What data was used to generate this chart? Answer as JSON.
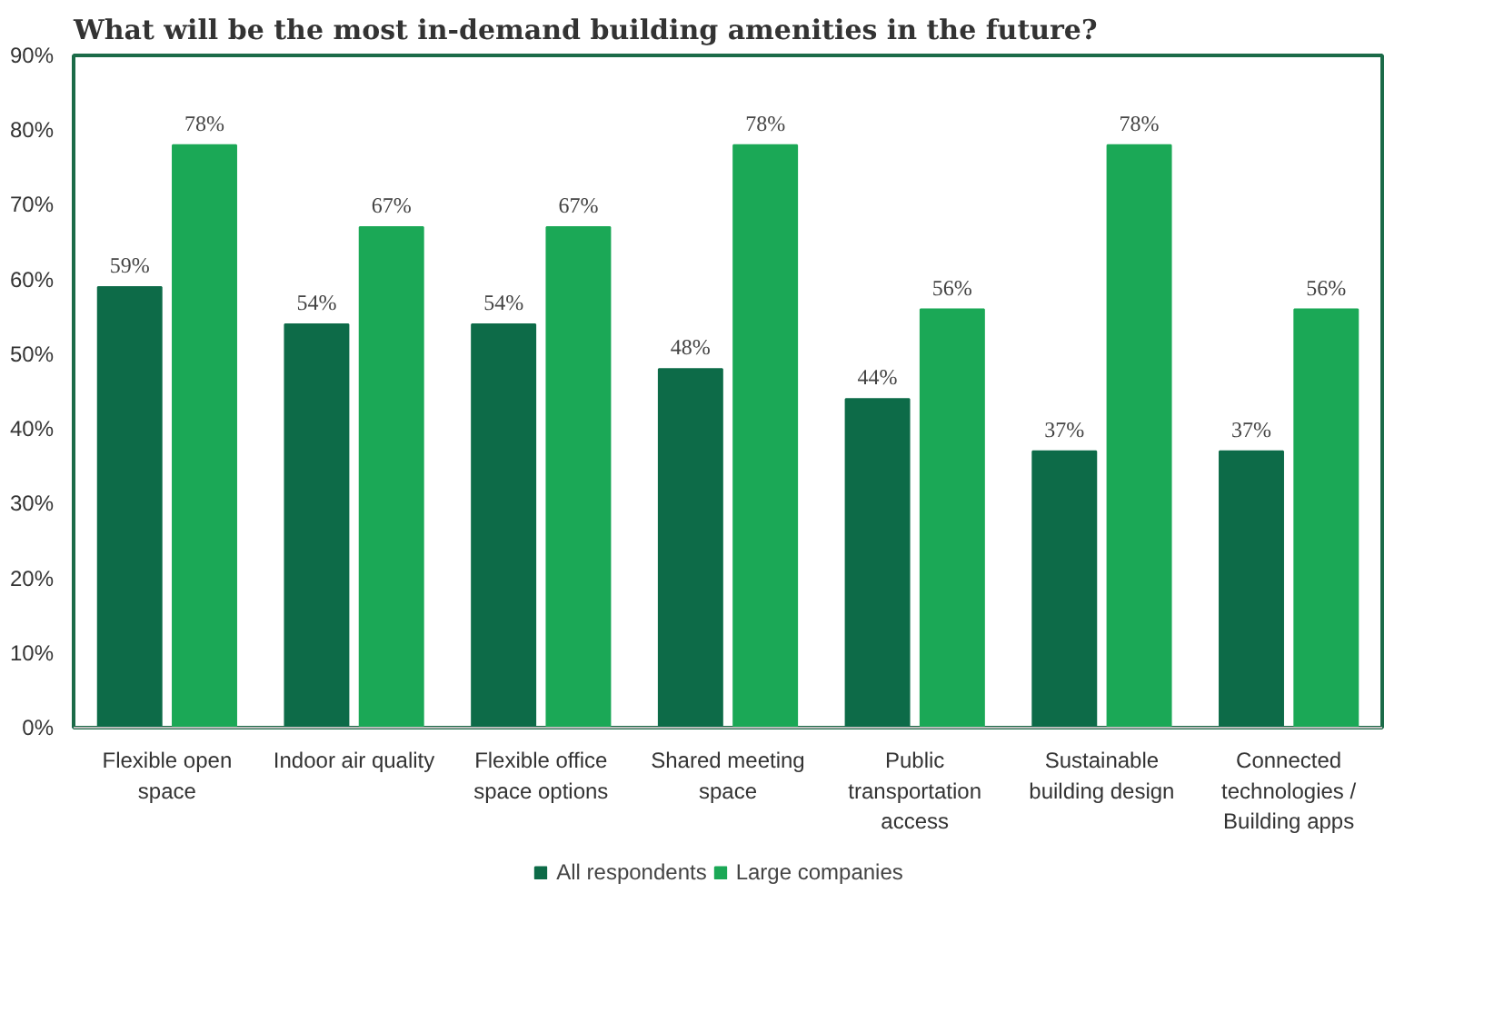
{
  "chart_data": {
    "type": "bar",
    "title": "What will be the most in-demand building amenities in the future?",
    "categories": [
      "Flexible open space",
      "Indoor air quality",
      "Flexible office space options",
      "Shared meeting space",
      "Public transportation access",
      "Sustainable building design",
      "Connected technologies / Building apps"
    ],
    "series": [
      {
        "name": "All respondents",
        "color": "#0d6b48",
        "values": [
          59,
          54,
          54,
          48,
          44,
          37,
          37
        ],
        "value_labels": [
          "59%",
          "54%",
          "54%",
          "48%",
          "44%",
          "37%",
          "37%"
        ]
      },
      {
        "name": "Large companies",
        "color": "#1ba856",
        "values": [
          78,
          67,
          67,
          78,
          56,
          78,
          56
        ],
        "value_labels": [
          "78%",
          "67%",
          "67%",
          "78%",
          "56%",
          "78%",
          "56%"
        ]
      }
    ],
    "ylim": [
      0,
      90
    ],
    "yticks": [
      {
        "value": 0,
        "label": "0%"
      },
      {
        "value": 10,
        "label": "10%"
      },
      {
        "value": 20,
        "label": "20%"
      },
      {
        "value": 30,
        "label": "30%"
      },
      {
        "value": 40,
        "label": "40%"
      },
      {
        "value": 50,
        "label": "50%"
      },
      {
        "value": 60,
        "label": "60%"
      },
      {
        "value": 70,
        "label": "70%"
      },
      {
        "value": 80,
        "label": "80%"
      },
      {
        "value": 90,
        "label": "90%"
      }
    ],
    "grid": false,
    "legend": "bottom"
  }
}
